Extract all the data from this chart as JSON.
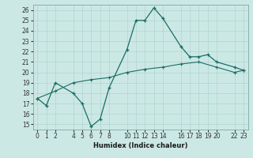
{
  "xlabel": "Humidex (Indice chaleur)",
  "background_color": "#cce8e5",
  "grid_color": "#b0d4d0",
  "line_color": "#1a6e64",
  "xlim": [
    -0.5,
    23.5
  ],
  "ylim": [
    14.5,
    26.5
  ],
  "xticks": [
    0,
    1,
    2,
    4,
    5,
    6,
    7,
    8,
    10,
    11,
    12,
    13,
    14,
    16,
    17,
    18,
    19,
    20,
    22,
    23
  ],
  "yticks": [
    15,
    16,
    17,
    18,
    19,
    20,
    21,
    22,
    23,
    24,
    25,
    26
  ],
  "line1_x": [
    0,
    1,
    2,
    4,
    5,
    6,
    7,
    8,
    10,
    11,
    12,
    13,
    14,
    16,
    17,
    18,
    19,
    20,
    22,
    23
  ],
  "line1_y": [
    17.5,
    16.8,
    19.0,
    18.0,
    17.0,
    14.8,
    15.5,
    18.5,
    22.2,
    25.0,
    25.0,
    26.2,
    25.2,
    22.5,
    21.5,
    21.5,
    21.7,
    21.0,
    20.5,
    20.2
  ],
  "line2_x": [
    0,
    2,
    4,
    6,
    8,
    10,
    12,
    14,
    16,
    18,
    20,
    22,
    23
  ],
  "line2_y": [
    17.5,
    18.2,
    19.0,
    19.3,
    19.5,
    20.0,
    20.3,
    20.5,
    20.8,
    21.0,
    20.5,
    20.0,
    20.2
  ]
}
